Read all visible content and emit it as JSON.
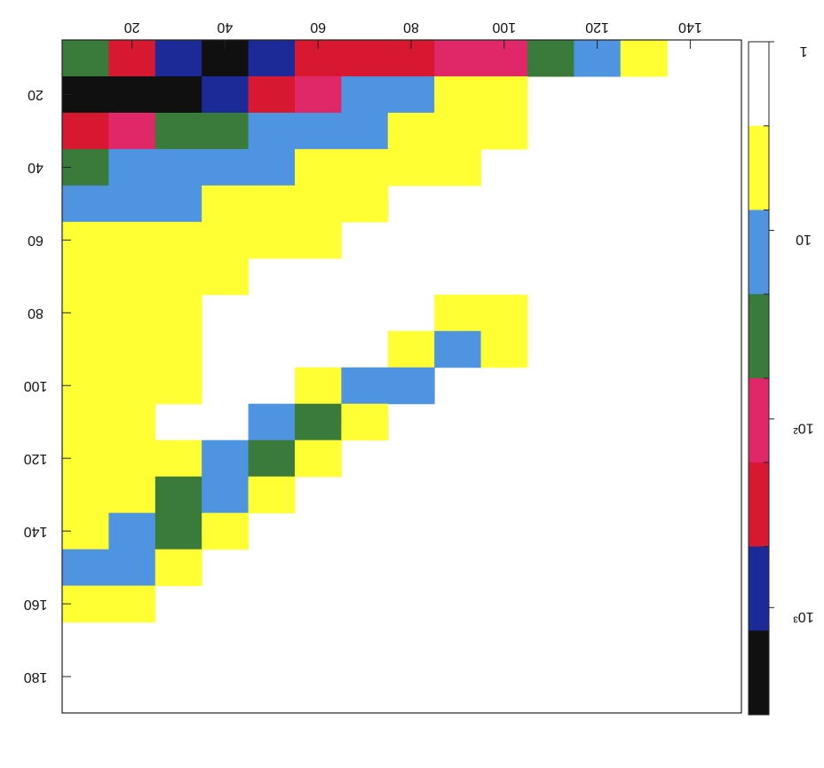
{
  "chart_data": {
    "type": "heatmap",
    "xlim": [
      5,
      151
    ],
    "ylim": [
      5,
      190
    ],
    "xticks": [
      20,
      40,
      60,
      80,
      100,
      120,
      140
    ],
    "yticks": [
      20,
      40,
      60,
      80,
      100,
      120,
      140,
      160,
      180
    ],
    "xbins": [
      5,
      15,
      25,
      35,
      45,
      55,
      65,
      75,
      85,
      95,
      105,
      115,
      125,
      135,
      145,
      155
    ],
    "ybins": [
      5,
      15,
      25,
      35,
      45,
      55,
      65,
      75,
      85,
      95,
      105,
      115,
      125,
      135,
      145,
      155,
      165,
      175,
      185,
      195
    ],
    "z": [
      [
        40,
        250,
        1000,
        3000,
        1000,
        250,
        250,
        250,
        100,
        100,
        40,
        15,
        5,
        0,
        0
      ],
      [
        3000,
        3000,
        3000,
        1000,
        250,
        100,
        15,
        15,
        5,
        5,
        0,
        0,
        0,
        0,
        0
      ],
      [
        250,
        100,
        40,
        40,
        15,
        15,
        15,
        5,
        5,
        5,
        0,
        0,
        0,
        0,
        0
      ],
      [
        40,
        15,
        15,
        15,
        15,
        5,
        5,
        5,
        5,
        0,
        0,
        0,
        0,
        0,
        0
      ],
      [
        15,
        15,
        15,
        5,
        5,
        5,
        5,
        0,
        0,
        0,
        0,
        0,
        0,
        0,
        0
      ],
      [
        5,
        5,
        5,
        5,
        5,
        5,
        0,
        0,
        0,
        0,
        0,
        0,
        0,
        0,
        0
      ],
      [
        5,
        5,
        5,
        5,
        0,
        0,
        0,
        0,
        0,
        0,
        0,
        0,
        0,
        0,
        0
      ],
      [
        5,
        5,
        5,
        0,
        0,
        0,
        0,
        0,
        5,
        5,
        0,
        0,
        0,
        0,
        0
      ],
      [
        5,
        5,
        5,
        0,
        0,
        0,
        0,
        5,
        15,
        5,
        0,
        0,
        0,
        0,
        0
      ],
      [
        5,
        5,
        5,
        0,
        0,
        5,
        15,
        15,
        0,
        0,
        0,
        0,
        0,
        0,
        0
      ],
      [
        5,
        5,
        0,
        0,
        15,
        40,
        5,
        0,
        0,
        0,
        0,
        0,
        0,
        0,
        0
      ],
      [
        5,
        5,
        5,
        15,
        40,
        5,
        0,
        0,
        0,
        0,
        0,
        0,
        0,
        0,
        0
      ],
      [
        5,
        5,
        40,
        15,
        5,
        0,
        0,
        0,
        0,
        0,
        0,
        0,
        0,
        0,
        0
      ],
      [
        5,
        15,
        40,
        5,
        0,
        0,
        0,
        0,
        0,
        0,
        0,
        0,
        0,
        0,
        0
      ],
      [
        15,
        15,
        5,
        0,
        0,
        0,
        0,
        0,
        0,
        0,
        0,
        0,
        0,
        0,
        0
      ],
      [
        5,
        5,
        0,
        0,
        0,
        0,
        0,
        0,
        0,
        0,
        0,
        0,
        0,
        0,
        0
      ],
      [
        0,
        0,
        0,
        0,
        0,
        0,
        0,
        0,
        0,
        0,
        0,
        0,
        0,
        0,
        0
      ],
      [
        0,
        0,
        0,
        0,
        0,
        0,
        0,
        0,
        0,
        0,
        0,
        0,
        0,
        0,
        0
      ],
      [
        0,
        0,
        0,
        0,
        0,
        0,
        0,
        0,
        0,
        0,
        0,
        0,
        0,
        0,
        0
      ]
    ],
    "colorbar": {
      "log": true,
      "lim": [
        1,
        3700
      ],
      "colors": [
        "#ffffff",
        "#ffff33",
        "#4f94e0",
        "#3a7a3a",
        "#e02868",
        "#d81830",
        "#1c2a98",
        "#101010"
      ],
      "ticks": [
        {
          "value": 1,
          "label": "1"
        },
        {
          "value": 10,
          "label": "10"
        },
        {
          "value": 100,
          "label": "10²"
        },
        {
          "value": 1000,
          "label": "10³"
        }
      ]
    }
  }
}
